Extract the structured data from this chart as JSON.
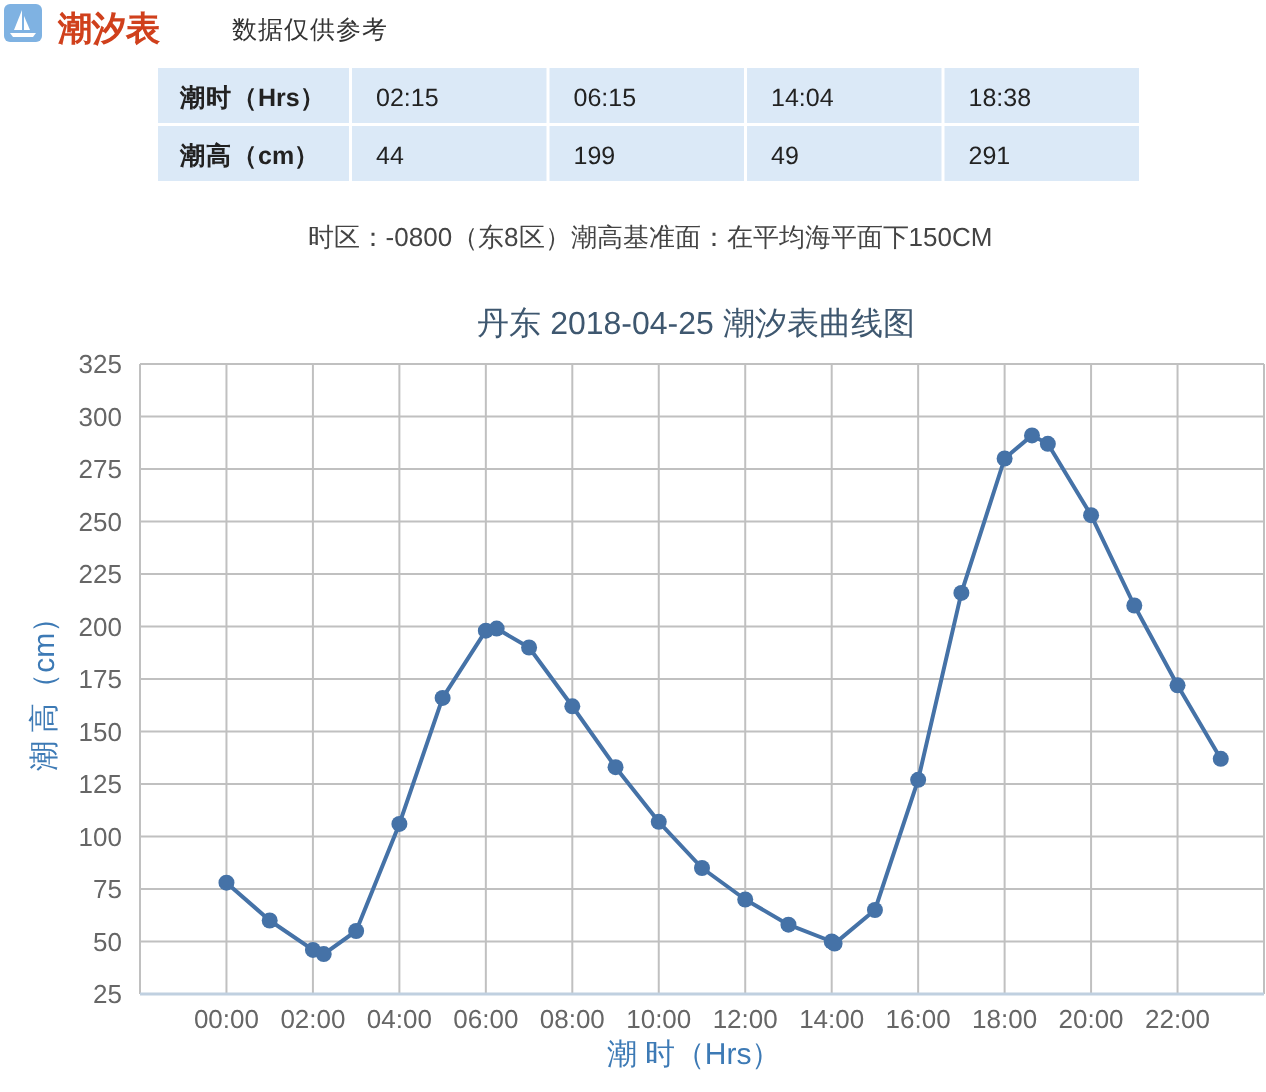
{
  "chart_data": [
    {
      "type": "other",
      "title": "潮汐表",
      "subtitle": "数据仅供参考",
      "annotations": [
        "潮时（Hrs）",
        "02:15",
        "06:15",
        "14:04",
        "18:38",
        "潮高（cm）",
        "44",
        "199",
        "49",
        "291",
        "时区：-0800（东8区）潮高基准面：在平均海平面下150CM"
      ]
    },
    {
      "type": "line",
      "title": "丹东 2018-04-25 潮汐表曲线图",
      "xlabel": "潮 时（Hrs）",
      "ylabel": "潮 高（cm）",
      "x": [
        0,
        1,
        2,
        2.25,
        3,
        4,
        5,
        6,
        6.25,
        7,
        8,
        9,
        10,
        11,
        12,
        13,
        14,
        14.0667,
        15,
        16,
        17,
        18,
        18.6333,
        19,
        20,
        21,
        22,
        23
      ],
      "series": [
        {
          "color": "#4572a7",
          "values": [
            78,
            60,
            46,
            44,
            55,
            106,
            166,
            198,
            199,
            190,
            162,
            133,
            107,
            85,
            70,
            58,
            50,
            49,
            65,
            127,
            216,
            280,
            291,
            287,
            253,
            210,
            172,
            137
          ]
        }
      ],
      "xlim": [
        -2,
        24
      ],
      "xticks": [
        {
          "value": 0,
          "label": "00:00"
        },
        {
          "value": 2,
          "label": "02:00"
        },
        {
          "value": 4,
          "label": "04:00"
        },
        {
          "value": 6,
          "label": "06:00"
        },
        {
          "value": 8,
          "label": "08:00"
        },
        {
          "value": 10,
          "label": "10:00"
        },
        {
          "value": 12,
          "label": "12:00"
        },
        {
          "value": 14,
          "label": "14:00"
        },
        {
          "value": 16,
          "label": "16:00"
        },
        {
          "value": 18,
          "label": "18:00"
        },
        {
          "value": 20,
          "label": "20:00"
        },
        {
          "value": 22,
          "label": "22:00"
        }
      ],
      "ylim": [
        25,
        325
      ],
      "yticks": [
        25,
        50,
        75,
        100,
        125,
        150,
        175,
        200,
        225,
        250,
        275,
        300,
        325
      ],
      "grid": true,
      "marker": "circle",
      "line_style": "solid"
    }
  ]
}
